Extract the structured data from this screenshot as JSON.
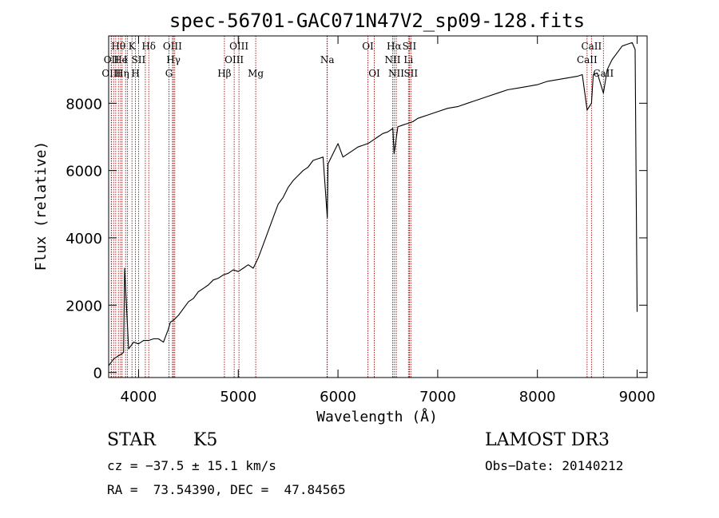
{
  "chart_data": {
    "type": "line",
    "title": "spec-56701-GAC071N47V2_sp09-128.fits",
    "xlabel": "Wavelength (Å)",
    "ylabel": "Flux (relative)",
    "xlim": [
      3700,
      9100
    ],
    "ylim": [
      -150,
      10000
    ],
    "x_ticks": [
      4000,
      5000,
      6000,
      7000,
      8000,
      9000
    ],
    "y_ticks": [
      0,
      2000,
      4000,
      6000,
      8000
    ],
    "x_tick_labels": [
      "4000",
      "5000",
      "6000",
      "7000",
      "8000",
      "9000"
    ],
    "y_tick_labels": [
      "0",
      "2000",
      "4000",
      "6000",
      "8000"
    ],
    "series": [
      {
        "name": "flux",
        "color": "#000000",
        "x": [
          3700,
          3750,
          3800,
          3830,
          3850,
          3860,
          3900,
          3950,
          4000,
          4050,
          4100,
          4150,
          4200,
          4250,
          4300,
          4320,
          4350,
          4400,
          4450,
          4500,
          4550,
          4600,
          4650,
          4700,
          4750,
          4800,
          4850,
          4900,
          4950,
          5000,
          5050,
          5100,
          5150,
          5200,
          5250,
          5300,
          5350,
          5400,
          5450,
          5500,
          5550,
          5600,
          5650,
          5700,
          5750,
          5800,
          5850,
          5893,
          5900,
          5950,
          6000,
          6050,
          6100,
          6150,
          6200,
          6250,
          6300,
          6350,
          6400,
          6450,
          6500,
          6550,
          6563,
          6600,
          6650,
          6700,
          6750,
          6800,
          6850,
          6900,
          6950,
          7000,
          7100,
          7200,
          7300,
          7400,
          7500,
          7600,
          7700,
          7800,
          7900,
          8000,
          8100,
          8200,
          8300,
          8400,
          8450,
          8498,
          8542,
          8560,
          8600,
          8662,
          8700,
          8750,
          8800,
          8850,
          8900,
          8950,
          8980,
          9000
        ],
        "values": [
          200,
          400,
          500,
          550,
          600,
          3100,
          700,
          900,
          850,
          950,
          950,
          1000,
          1000,
          900,
          1300,
          1500,
          1550,
          1700,
          1900,
          2100,
          2200,
          2400,
          2500,
          2600,
          2750,
          2800,
          2900,
          2950,
          3050,
          3000,
          3100,
          3200,
          3100,
          3400,
          3800,
          4200,
          4600,
          5000,
          5200,
          5500,
          5700,
          5850,
          6000,
          6100,
          6300,
          6350,
          6400,
          4600,
          6200,
          6500,
          6800,
          6400,
          6500,
          6600,
          6700,
          6750,
          6800,
          6900,
          7000,
          7100,
          7150,
          7250,
          6500,
          7300,
          7350,
          7400,
          7450,
          7550,
          7600,
          7650,
          7700,
          7750,
          7850,
          7900,
          8000,
          8100,
          8200,
          8300,
          8400,
          8450,
          8500,
          8550,
          8650,
          8700,
          8750,
          8800,
          8850,
          7800,
          8000,
          8850,
          8900,
          8300,
          9000,
          9300,
          9500,
          9700,
          9750,
          9800,
          9600,
          1800
        ]
      }
    ],
    "spectral_lines": [
      {
        "label": "Hθ",
        "wavelength": 3798,
        "row": 1
      },
      {
        "label": "OII",
        "wavelength": 3727,
        "row": 2
      },
      {
        "label": "OIII",
        "wavelength": 3727,
        "row": 3
      },
      {
        "label": "He",
        "wavelength": 3820,
        "row": 2
      },
      {
        "label": "Hη",
        "wavelength": 3835,
        "row": 3
      },
      {
        "label": "K",
        "wavelength": 3934,
        "row": 1
      },
      {
        "label": "I",
        "wavelength": 3870,
        "row": 2
      },
      {
        "label": "SII",
        "wavelength": 4000,
        "row": 2
      },
      {
        "label": "H",
        "wavelength": 3969,
        "row": 3
      },
      {
        "label": "Hδ",
        "wavelength": 4102,
        "row": 1
      },
      {
        "label": "OIII",
        "wavelength": 4340,
        "row": 1
      },
      {
        "label": "Hγ",
        "wavelength": 4350,
        "row": 2
      },
      {
        "label": "G",
        "wavelength": 4305,
        "row": 3
      },
      {
        "label": "Hβ",
        "wavelength": 4861,
        "row": 3
      },
      {
        "label": "OIII",
        "wavelength": 5007,
        "row": 1
      },
      {
        "label": "OIII",
        "wavelength": 4959,
        "row": 2
      },
      {
        "label": "Mg",
        "wavelength": 5175,
        "row": 3
      },
      {
        "label": "Na",
        "wavelength": 5893,
        "row": 2
      },
      {
        "label": "OI",
        "wavelength": 6300,
        "row": 1
      },
      {
        "label": "OI",
        "wavelength": 6364,
        "row": 3
      },
      {
        "label": "Hα",
        "wavelength": 6563,
        "row": 1
      },
      {
        "label": "SII",
        "wavelength": 6716,
        "row": 1
      },
      {
        "label": "NII",
        "wavelength": 6548,
        "row": 2
      },
      {
        "label": "Li",
        "wavelength": 6707,
        "row": 2
      },
      {
        "label": "NII",
        "wavelength": 6584,
        "row": 3
      },
      {
        "label": "SII",
        "wavelength": 6731,
        "row": 3
      },
      {
        "label": "CaII",
        "wavelength": 8542,
        "row": 1
      },
      {
        "label": "CaII",
        "wavelength": 8498,
        "row": 2
      },
      {
        "label": "CaII",
        "wavelength": 8662,
        "row": 3
      }
    ],
    "extra_line_markers": [
      3727,
      3750,
      3771,
      3889,
      4068,
      4363,
      5890,
      6583,
      6717
    ]
  },
  "info": {
    "object_class": "STAR",
    "subclass": "K5",
    "survey": "LAMOST DR3",
    "cz": "cz = −37.5 ± 15.1 km/s",
    "obs_date": "Obs−Date: 20140212",
    "coords": "RA =  73.54390, DEC =  47.84565"
  },
  "colors": {
    "line_marker": "#a01010",
    "spectrum": "#000000",
    "axes": "#000000"
  }
}
